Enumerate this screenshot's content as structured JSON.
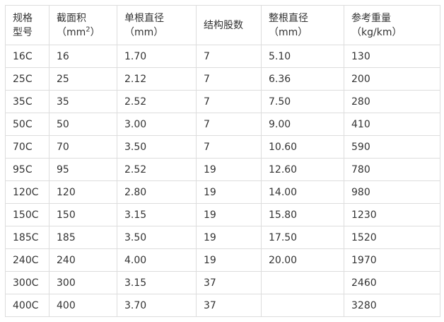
{
  "headers": [
    {
      "l1": "规格",
      "l2": "型号"
    },
    {
      "l1": "截面积",
      "l2": "（mm",
      "sup": "2",
      "tail": "）"
    },
    {
      "l1": "单根直径",
      "l2": "（mm）"
    },
    {
      "l1": "结构股数",
      "l2": ""
    },
    {
      "l1": "整根直径",
      "l2": "（mm）"
    },
    {
      "l1": "参考重量",
      "l2": "（kg/km）"
    }
  ],
  "rows": [
    [
      "16C",
      "16",
      "1.70",
      "7",
      "5.10",
      "130"
    ],
    [
      "25C",
      "25",
      "2.12",
      "7",
      "6.36",
      "200"
    ],
    [
      "35C",
      "35",
      "2.52",
      "7",
      "7.50",
      "280"
    ],
    [
      "50C",
      "50",
      "3.00",
      "7",
      "9.00",
      "410"
    ],
    [
      "70C",
      "70",
      "3.50",
      "7",
      "10.60",
      "590"
    ],
    [
      "95C",
      "95",
      "2.52",
      "19",
      "12.60",
      "780"
    ],
    [
      "120C",
      "120",
      "2.80",
      "19",
      "14.00",
      "980"
    ],
    [
      "150C",
      "150",
      "3.15",
      "19",
      "15.80",
      "1230"
    ],
    [
      "185C",
      "185",
      "3.50",
      "19",
      "17.50",
      "1520"
    ],
    [
      "240C",
      "240",
      "4.00",
      "19",
      "20.00",
      "1970"
    ],
    [
      "300C",
      "300",
      "3.15",
      "37",
      "",
      "2460"
    ],
    [
      "400C",
      "400",
      "3.70",
      "37",
      "",
      "3280"
    ]
  ]
}
